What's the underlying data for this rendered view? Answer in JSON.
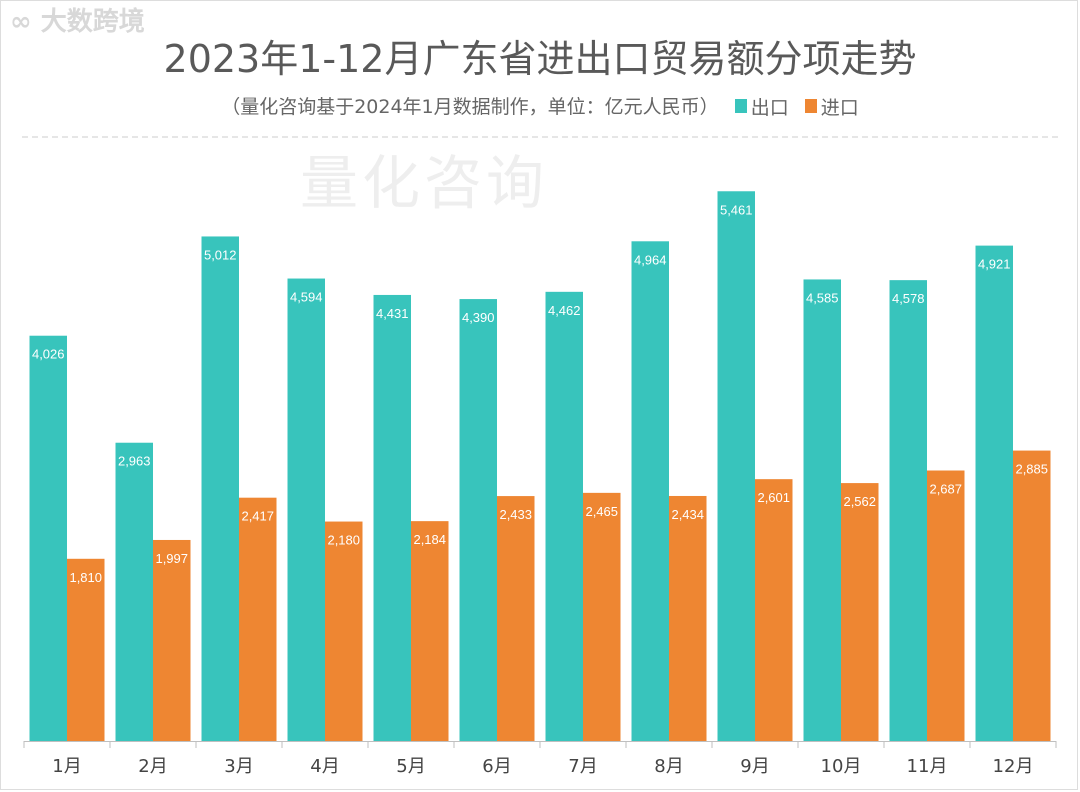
{
  "title": "2023年1-12月广东省进出口贸易额分项走势",
  "subtitle": "（量化咨询基于2024年1月数据制作，单位：亿元人民币）",
  "watermark": "量化咨询",
  "logo_text": "大数跨境",
  "chart_data": {
    "type": "bar",
    "title": "2023年1-12月广东省进出口贸易额分项走势",
    "categories": [
      "1月",
      "2月",
      "3月",
      "4月",
      "5月",
      "6月",
      "7月",
      "8月",
      "9月",
      "10月",
      "11月",
      "12月"
    ],
    "series": [
      {
        "name": "出口",
        "color": "#38C4BC",
        "values": [
          4026,
          2963,
          5012,
          4594,
          4431,
          4390,
          4462,
          4964,
          5461,
          4585,
          4578,
          4921
        ]
      },
      {
        "name": "进口",
        "color": "#EE8632",
        "values": [
          1810,
          1997,
          2417,
          2180,
          2184,
          2433,
          2465,
          2434,
          2601,
          2562,
          2687,
          2885
        ]
      }
    ],
    "ylim": [
      0,
      6000
    ],
    "grid": false,
    "legend": "top-right",
    "data_labels": true
  }
}
